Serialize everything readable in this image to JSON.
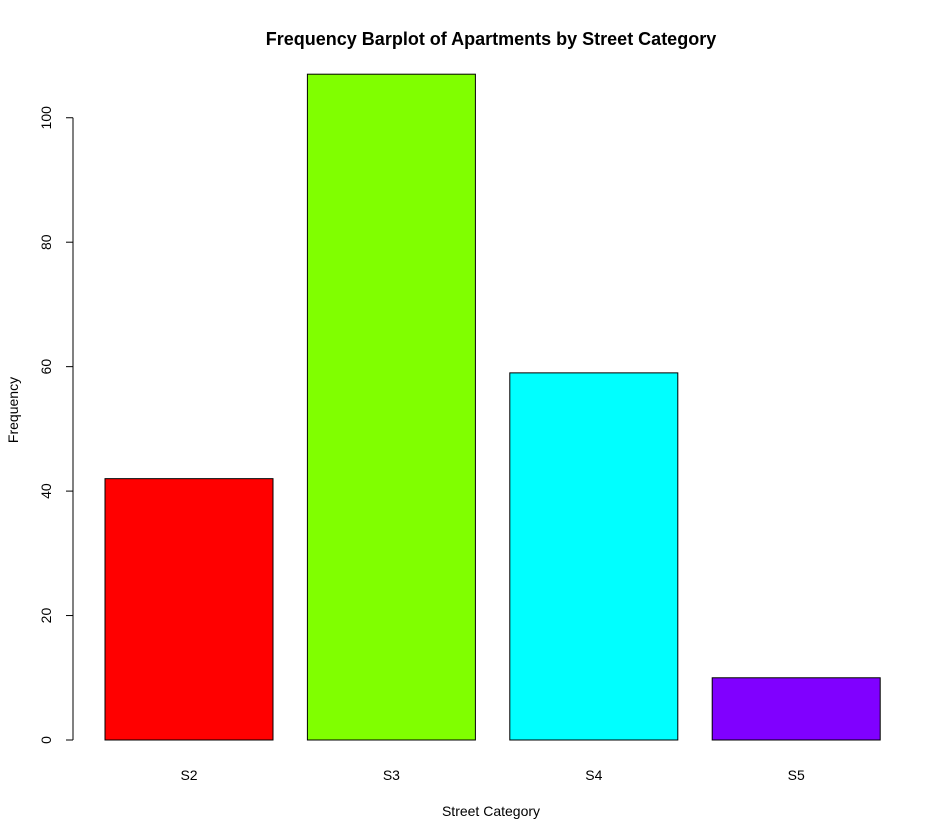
{
  "chart_data": {
    "type": "bar",
    "title": "Frequency Barplot of Apartments by Street Category",
    "xlabel": "Street Category",
    "ylabel": "Frequency",
    "categories": [
      "S2",
      "S3",
      "S4",
      "S5"
    ],
    "values": [
      42,
      107,
      59,
      10
    ],
    "colors": [
      "#FF0000",
      "#80FF00",
      "#00FFFF",
      "#8000FF"
    ],
    "ylim": [
      0,
      107
    ],
    "yticks": [
      0,
      20,
      40,
      60,
      80,
      100
    ],
    "grid": false,
    "legend": "none"
  }
}
